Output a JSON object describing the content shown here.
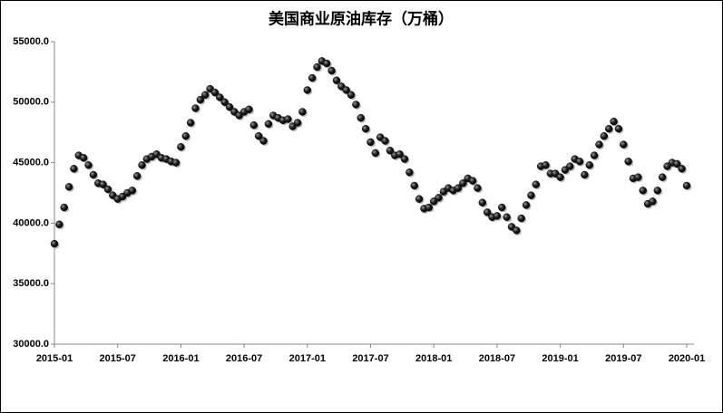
{
  "chart_data": {
    "type": "line",
    "title": "美国商业原油库存（万桶）",
    "categories": [
      "2015-01",
      null,
      null,
      null,
      null,
      null,
      null,
      null,
      null,
      null,
      null,
      null,
      null,
      "2015-07",
      null,
      null,
      null,
      null,
      null,
      null,
      null,
      null,
      null,
      null,
      null,
      null,
      "2016-01",
      null,
      null,
      null,
      null,
      null,
      null,
      null,
      null,
      null,
      null,
      null,
      null,
      "2016-07",
      null,
      null,
      null,
      null,
      null,
      null,
      null,
      null,
      null,
      null,
      null,
      null,
      "2017-01",
      null,
      null,
      null,
      null,
      null,
      null,
      null,
      null,
      null,
      null,
      null,
      null,
      "2017-07",
      null,
      null,
      null,
      null,
      null,
      null,
      null,
      null,
      null,
      null,
      null,
      null,
      "2018-01",
      null,
      null,
      null,
      null,
      null,
      null,
      null,
      null,
      null,
      null,
      null,
      null,
      "2018-07",
      null,
      null,
      null,
      null,
      null,
      null,
      null,
      null,
      null,
      null,
      null,
      null,
      "2019-01",
      null,
      null,
      null,
      null,
      null,
      null,
      null,
      null,
      null,
      null,
      null,
      null,
      "2019-07",
      null,
      null,
      null,
      null,
      null,
      null,
      null,
      null,
      null,
      null,
      null,
      null,
      "2020-01"
    ],
    "values": [
      38300,
      39900,
      41300,
      43000,
      44500,
      45600,
      45400,
      44800,
      44000,
      43300,
      43200,
      42800,
      42300,
      42000,
      42200,
      42500,
      42700,
      43900,
      44800,
      45300,
      45500,
      45700,
      45400,
      45300,
      45100,
      45000,
      46300,
      47200,
      48300,
      49500,
      50200,
      50600,
      51100,
      50800,
      50400,
      50000,
      49600,
      49200,
      48900,
      49200,
      49400,
      48100,
      47200,
      46800,
      48200,
      48900,
      48700,
      48500,
      48600,
      48000,
      48300,
      49200,
      51000,
      52000,
      52900,
      53400,
      53200,
      52600,
      51800,
      51300,
      51000,
      50600,
      49800,
      48700,
      47800,
      46700,
      45800,
      47100,
      46800,
      46000,
      45600,
      45700,
      45300,
      44200,
      43100,
      42000,
      41200,
      41300,
      41800,
      42100,
      42600,
      42900,
      42700,
      42900,
      43300,
      43700,
      43500,
      42900,
      41700,
      40900,
      40500,
      40600,
      41300,
      40500,
      39700,
      39400,
      40400,
      41500,
      42300,
      43200,
      44700,
      44800,
      44100,
      44100,
      43800,
      44400,
      44700,
      45300,
      45100,
      44000,
      44800,
      45600,
      46500,
      47200,
      47800,
      48400,
      47800,
      46500,
      45100,
      43700,
      43800,
      42700,
      41600,
      41800,
      42700,
      43800,
      44700,
      45000,
      44900,
      44500,
      43100
    ],
    "color": "#111111",
    "ylim": [
      30000,
      55000
    ],
    "yticks": [
      {
        "value": 30000,
        "label": "30000.0"
      },
      {
        "value": 35000,
        "label": "35000.0"
      },
      {
        "value": 40000,
        "label": "40000.0"
      },
      {
        "value": 45000,
        "label": "45000.0"
      },
      {
        "value": 50000,
        "label": "50000.0"
      },
      {
        "value": 55000,
        "label": "55000.0"
      }
    ]
  }
}
